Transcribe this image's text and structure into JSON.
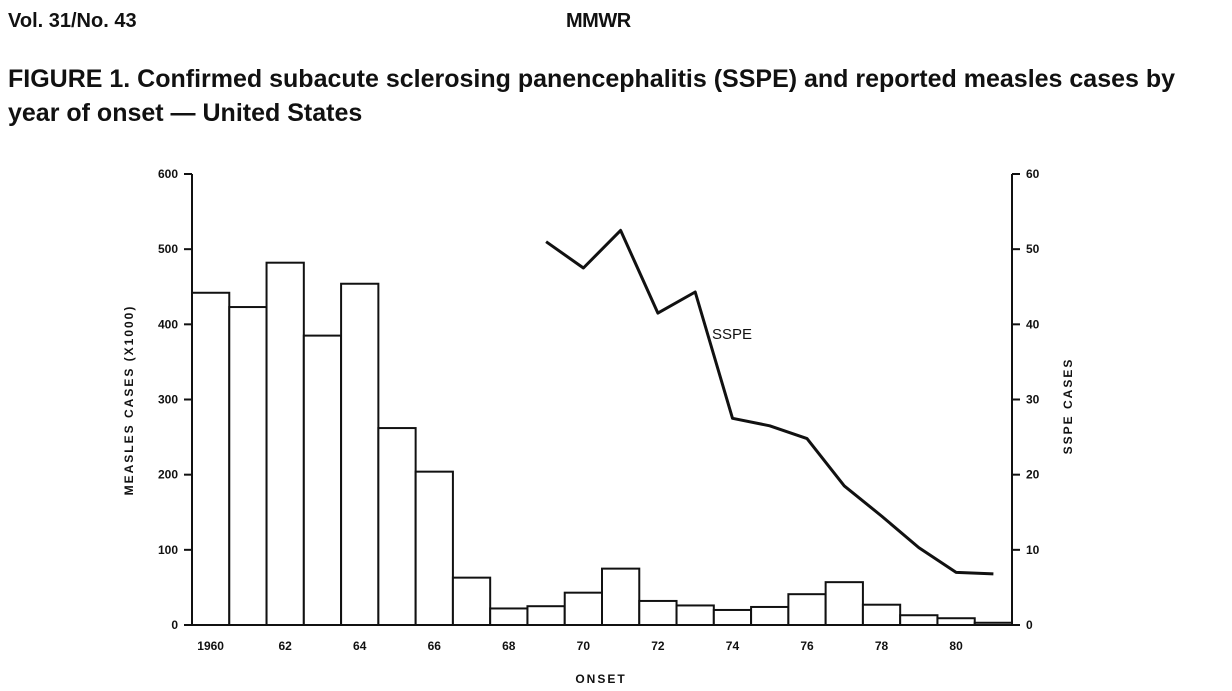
{
  "header": {
    "volume": "Vol. 31/No. 43",
    "journal": "MMWR"
  },
  "chart_data": {
    "type": "bar",
    "title": "FIGURE 1. Confirmed subacute sclerosing panencephalitis (SSPE) and reported measles cases by year of onset — United States",
    "xlabel": "ONSET",
    "ylabel": "MEASLES CASES (X1000)",
    "y2label": "SSPE CASES",
    "x": [
      1960,
      1961,
      1962,
      1963,
      1964,
      1965,
      1966,
      1967,
      1968,
      1969,
      1970,
      1971,
      1972,
      1973,
      1974,
      1975,
      1976,
      1977,
      1978,
      1979,
      1980,
      1981
    ],
    "x_tick_labels": [
      {
        "year": 1960,
        "label": "1960"
      },
      {
        "year": 1962,
        "label": "62"
      },
      {
        "year": 1964,
        "label": "64"
      },
      {
        "year": 1966,
        "label": "66"
      },
      {
        "year": 1968,
        "label": "68"
      },
      {
        "year": 1970,
        "label": "70"
      },
      {
        "year": 1972,
        "label": "72"
      },
      {
        "year": 1974,
        "label": "74"
      },
      {
        "year": 1976,
        "label": "76"
      },
      {
        "year": 1978,
        "label": "78"
      },
      {
        "year": 1980,
        "label": "80"
      }
    ],
    "ylim": [
      0,
      600
    ],
    "yticks": [
      "0",
      "100",
      "200",
      "300",
      "400",
      "500",
      "600"
    ],
    "y2lim": [
      0,
      60
    ],
    "y2ticks": [
      "0",
      "10",
      "20",
      "30",
      "40",
      "50",
      "60"
    ],
    "series": [
      {
        "name": "",
        "kind": "bar",
        "axis": "left",
        "values": [
          442,
          423,
          482,
          385,
          454,
          262,
          204,
          63,
          22,
          25,
          43,
          75,
          32,
          26,
          20,
          24,
          41,
          57,
          27,
          13,
          9,
          3
        ]
      },
      {
        "name": "SSPE",
        "kind": "line",
        "axis": "right",
        "x": [
          1969,
          1970,
          1971,
          1972,
          1973,
          1974,
          1975,
          1976,
          1977,
          1978,
          1979,
          1980,
          1981
        ],
        "values": [
          51,
          47.5,
          52.5,
          41.5,
          44.3,
          27.5,
          26.5,
          24.8,
          18.5,
          14.5,
          10.3,
          7,
          6.8
        ]
      }
    ],
    "line_label": "SSPE",
    "grid": false,
    "legend": "none"
  }
}
